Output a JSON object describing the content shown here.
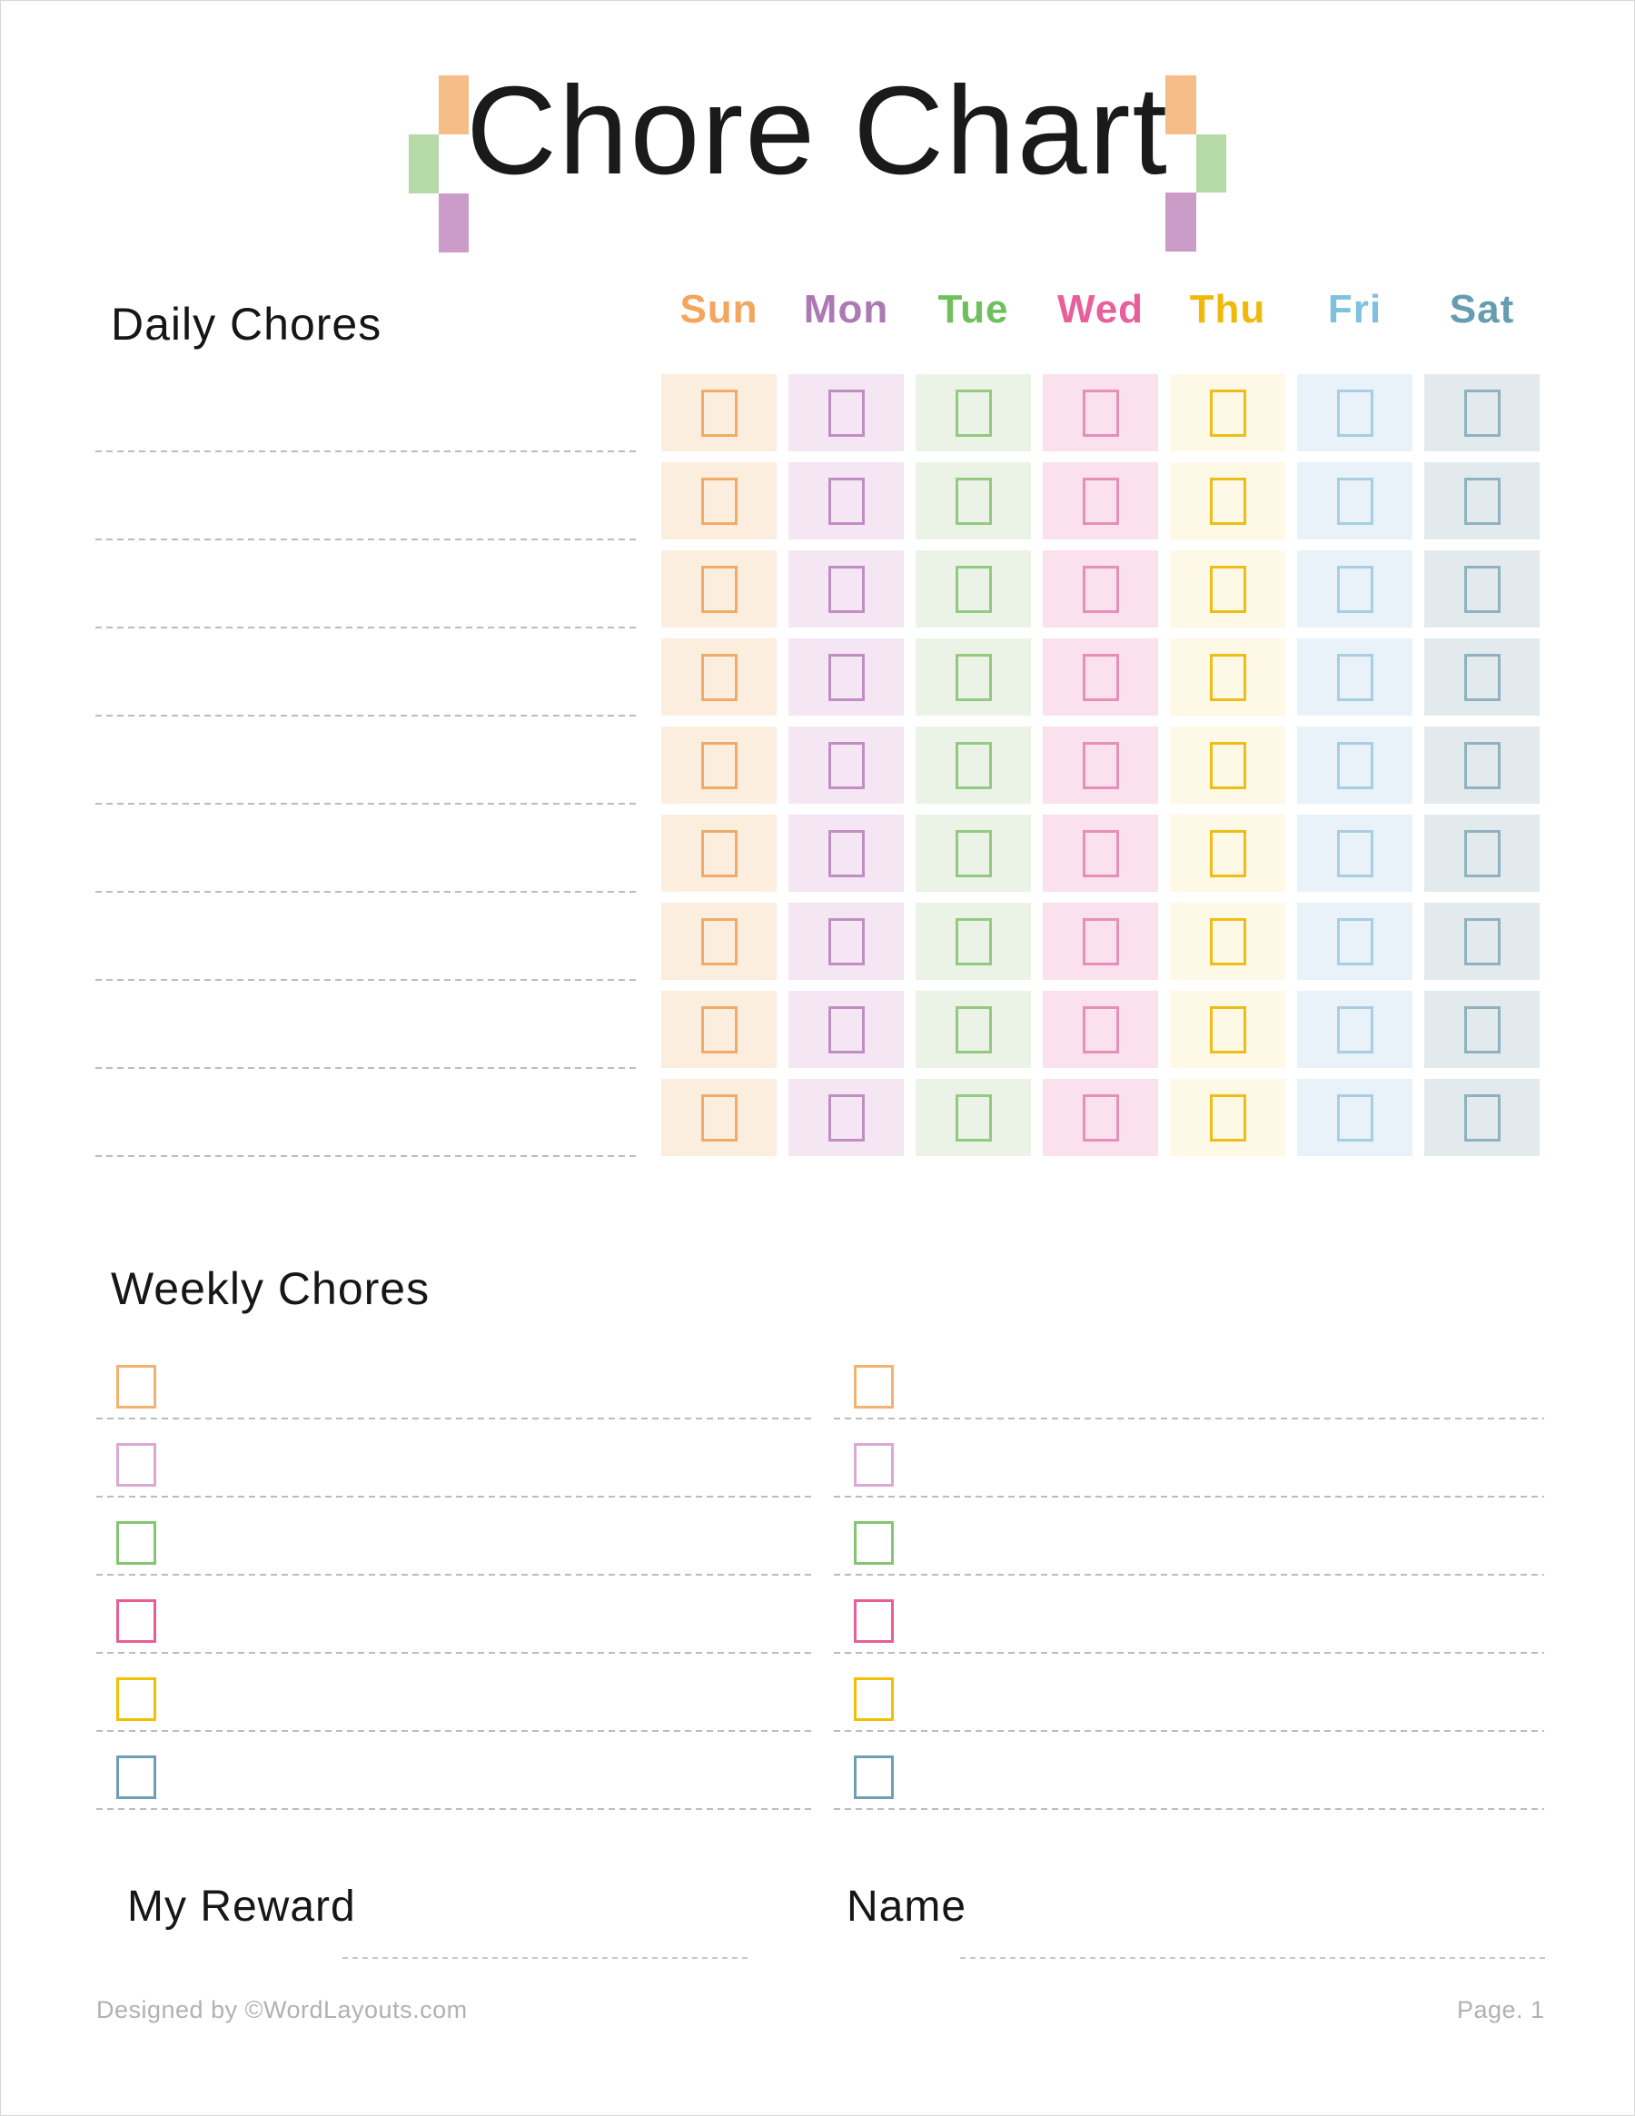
{
  "page": {
    "title": "Chore Chart",
    "background": "#ffffff",
    "footer_left": "Designed by ©WordLayouts.com",
    "footer_right": "Page. 1"
  },
  "decor": {
    "orange": "#F5BE88",
    "green": "#B6D9A8",
    "purple": "#CB9CC8"
  },
  "daily": {
    "heading": "Daily Chores",
    "rows": 9,
    "line_color": "#bcbcbc",
    "days": [
      {
        "label": "Sun",
        "color": "#F4A55E",
        "cell_bg": "#FCEEDF",
        "box_color": "#F1AB66"
      },
      {
        "label": "Mon",
        "color": "#AC79B4",
        "cell_bg": "#F4E7F3",
        "box_color": "#C18EC4"
      },
      {
        "label": "Tue",
        "color": "#6FBF5C",
        "cell_bg": "#EAF3E5",
        "box_color": "#94C981"
      },
      {
        "label": "Wed",
        "color": "#E75F9B",
        "cell_bg": "#FAE1ED",
        "box_color": "#E68FB9"
      },
      {
        "label": "Thu",
        "color": "#F2B90B",
        "cell_bg": "#FEF9E7",
        "box_color": "#EEBE16"
      },
      {
        "label": "Fri",
        "color": "#7FC2DE",
        "cell_bg": "#E9F2F8",
        "box_color": "#A7CEE2"
      },
      {
        "label": "Sat",
        "color": "#649CB0",
        "cell_bg": "#E3EAED",
        "box_color": "#8FB2BE"
      }
    ]
  },
  "weekly": {
    "heading": "Weekly Chores",
    "rows_per_column": 6,
    "box_colors": [
      "#F4B271",
      "#DCA8D4",
      "#85C473",
      "#E95F94",
      "#F2C001",
      "#6F9FB3"
    ]
  },
  "fields": {
    "reward_label": "My Reward",
    "name_label": "Name"
  }
}
